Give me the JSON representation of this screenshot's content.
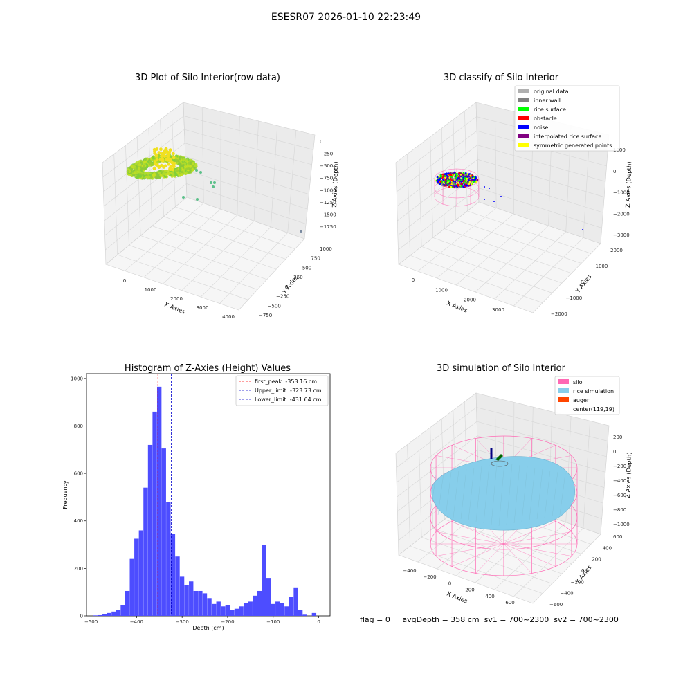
{
  "suptitle": "ESESR07 2026-01-10 22:23:49",
  "footer": {
    "flag": "flag = 0",
    "avgDepth": "avgDepth = 358 cm",
    "sv1": "sv1 = 700~2300",
    "sv2": "sv2 = 700~2300"
  },
  "colors": {
    "histogram_bar": "#4d4dff",
    "first_peak_line": "#ff0000",
    "limit_lines": "#0000cc",
    "rice_points": "#9acd32",
    "silo_wire": "#ff69b4",
    "rice_simulation": "#87cefa",
    "auger": "#ff4500"
  },
  "chart_data": [
    {
      "type": "scatter",
      "title": "3D Plot of Silo Interior(row data)",
      "xlabel": "X Axies",
      "ylabel": "Y Axies",
      "zlabel": "Z Axies (Depth)",
      "x_ticks": [
        "0",
        "1000",
        "2000",
        "3000",
        "4000"
      ],
      "y_ticks": [
        "−750",
        "−500",
        "−250",
        "0",
        "250",
        "500",
        "750",
        "1000"
      ],
      "z_ticks": [
        "0",
        "−250",
        "−500",
        "−750",
        "−1000",
        "−1250",
        "−1500",
        "−1750"
      ],
      "grid": true
    },
    {
      "type": "scatter",
      "title": "3D classify of Silo Interior",
      "xlabel": "X Axies",
      "ylabel": "Y Axies",
      "zlabel": "Z Axies (Depth)",
      "x_ticks": [
        "0",
        "1000",
        "2000",
        "3000"
      ],
      "y_ticks": [
        "−2000",
        "−1000",
        "0",
        "1000",
        "2000"
      ],
      "z_ticks": [
        "1000",
        "0",
        "−1000",
        "−2000",
        "−3000"
      ],
      "legend_position": "top-right",
      "legend": [
        {
          "label": "original data",
          "color": "#b0b0b0"
        },
        {
          "label": "inner wall",
          "color": "#808080"
        },
        {
          "label": "rice surface",
          "color": "#00ff00"
        },
        {
          "label": "obstacle",
          "color": "#ff0000"
        },
        {
          "label": "noise",
          "color": "#0000ff"
        },
        {
          "label": "interpolated rice surface",
          "color": "#800080"
        },
        {
          "label": "symmetric generated points",
          "color": "#ffff00"
        }
      ],
      "grid": true
    },
    {
      "type": "bar",
      "title": "Histogram of Z-Axies (Height) Values",
      "xlabel": "Depth (cm)",
      "ylabel": "Frequency",
      "xlim": [
        -510,
        25
      ],
      "ylim": [
        0,
        1020
      ],
      "x_ticks": [
        -500,
        -400,
        -300,
        -200,
        -100,
        0
      ],
      "y_ticks": [
        0,
        200,
        400,
        600,
        800,
        1000
      ],
      "bin_width": 10,
      "bins": [
        {
          "x": -490,
          "y": 2
        },
        {
          "x": -480,
          "y": 3
        },
        {
          "x": -470,
          "y": 8
        },
        {
          "x": -460,
          "y": 12
        },
        {
          "x": -450,
          "y": 18
        },
        {
          "x": -440,
          "y": 25
        },
        {
          "x": -430,
          "y": 45
        },
        {
          "x": -420,
          "y": 105
        },
        {
          "x": -410,
          "y": 240
        },
        {
          "x": -400,
          "y": 325
        },
        {
          "x": -390,
          "y": 360
        },
        {
          "x": -380,
          "y": 540
        },
        {
          "x": -370,
          "y": 720
        },
        {
          "x": -360,
          "y": 860
        },
        {
          "x": -350,
          "y": 965
        },
        {
          "x": -340,
          "y": 705
        },
        {
          "x": -330,
          "y": 480
        },
        {
          "x": -320,
          "y": 345
        },
        {
          "x": -310,
          "y": 250
        },
        {
          "x": -300,
          "y": 165
        },
        {
          "x": -290,
          "y": 130
        },
        {
          "x": -280,
          "y": 145
        },
        {
          "x": -270,
          "y": 105
        },
        {
          "x": -260,
          "y": 105
        },
        {
          "x": -250,
          "y": 95
        },
        {
          "x": -240,
          "y": 75
        },
        {
          "x": -230,
          "y": 50
        },
        {
          "x": -220,
          "y": 60
        },
        {
          "x": -210,
          "y": 40
        },
        {
          "x": -200,
          "y": 45
        },
        {
          "x": -190,
          "y": 25
        },
        {
          "x": -180,
          "y": 30
        },
        {
          "x": -170,
          "y": 40
        },
        {
          "x": -160,
          "y": 55
        },
        {
          "x": -150,
          "y": 60
        },
        {
          "x": -140,
          "y": 85
        },
        {
          "x": -130,
          "y": 105
        },
        {
          "x": -120,
          "y": 300
        },
        {
          "x": -110,
          "y": 160
        },
        {
          "x": -100,
          "y": 50
        },
        {
          "x": -90,
          "y": 60
        },
        {
          "x": -80,
          "y": 55
        },
        {
          "x": -70,
          "y": 40
        },
        {
          "x": -60,
          "y": 80
        },
        {
          "x": -50,
          "y": 120
        },
        {
          "x": -40,
          "y": 25
        },
        {
          "x": -30,
          "y": 5
        },
        {
          "x": -10,
          "y": 12
        }
      ],
      "vlines": [
        {
          "label": "first_peak: -353.16 cm",
          "x": -353.16,
          "color": "#ff0000"
        },
        {
          "label": "Upper_limit: -323.73 cm",
          "x": -323.73,
          "color": "#0000cc"
        },
        {
          "label": "Lower_limit: -431.64 cm",
          "x": -431.64,
          "color": "#0000cc"
        }
      ],
      "legend_position": "top-right"
    },
    {
      "type": "scatter",
      "title": "3D simulation of Silo Interior",
      "xlabel": "X Axies",
      "ylabel": "Y Axies",
      "zlabel": "Z Axies (Depth)",
      "x_ticks": [
        "−400",
        "−200",
        "0",
        "200",
        "400",
        "600"
      ],
      "y_ticks": [
        "−600",
        "−400",
        "−200",
        "0",
        "200",
        "400",
        "600"
      ],
      "z_ticks": [
        "200",
        "0",
        "−200",
        "−400",
        "−600",
        "−800",
        "−1000"
      ],
      "legend_position": "top-right",
      "legend": [
        {
          "label": "silo",
          "color": "#ff69b4"
        },
        {
          "label": "rice simulation",
          "color": "#87ceeb"
        },
        {
          "label": "auger",
          "color": "#ff4500"
        },
        {
          "label": "center(119,19)",
          "color": ""
        }
      ],
      "grid": true
    }
  ]
}
